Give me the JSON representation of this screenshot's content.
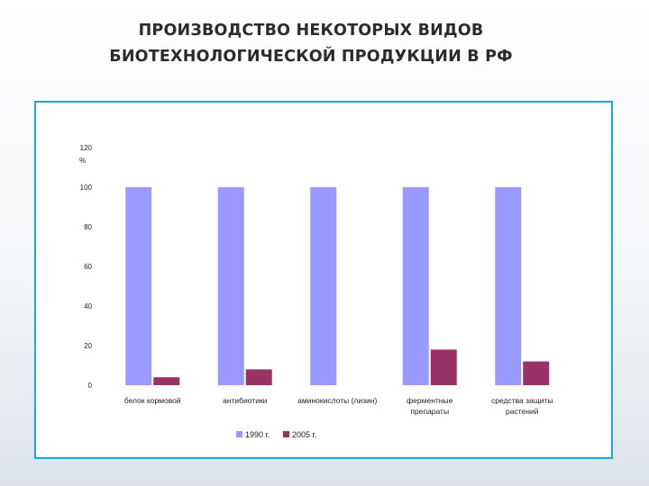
{
  "slide": {
    "title_line1": "ПРОИЗВОДСТВО НЕКОТОРЫХ ВИДОВ",
    "title_line2": "БИОТЕХНОЛОГИЧЕСКОЙ ПРОДУКЦИИ В РФ"
  },
  "chart_data": {
    "type": "bar",
    "title": "",
    "ylabel": "%",
    "ylim": [
      0,
      120
    ],
    "yticks": [
      0,
      20,
      40,
      60,
      80,
      100,
      120
    ],
    "categories": [
      [
        "белок кормовой"
      ],
      [
        "антибиотики"
      ],
      [
        "аминокислоты (лизин)"
      ],
      [
        "ферментные",
        "препараты"
      ],
      [
        "средства защиты",
        "растений"
      ]
    ],
    "series": [
      {
        "name": "1990 г.",
        "color": "#9999ff",
        "values": [
          100,
          100,
          100,
          100,
          100
        ]
      },
      {
        "name": "2005 г.",
        "color": "#993366",
        "values": [
          4,
          8,
          0,
          18,
          12
        ]
      }
    ],
    "legend_position": "bottom",
    "grid": false
  }
}
